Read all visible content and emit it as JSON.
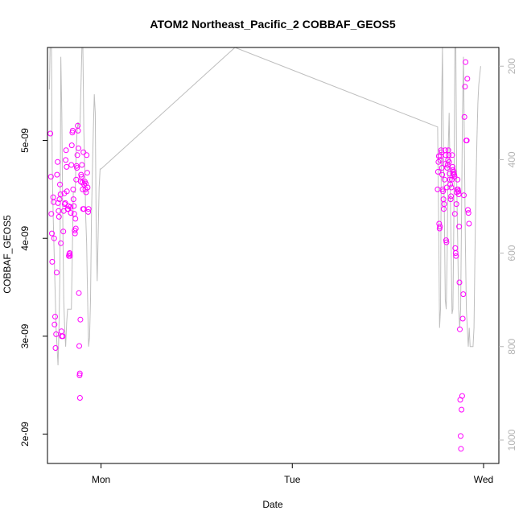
{
  "chart_data": {
    "type": "scatter",
    "title": "ATOM2 Northeast_Pacific_2 COBBAF_GEOS5",
    "xlabel": "Date",
    "ylabel": "COBBAF_GEOS5",
    "x_ticks": [
      "Mon",
      "Tue",
      "Wed"
    ],
    "y_ticks": [
      "2e-09",
      "3e-09",
      "4e-09",
      "5e-09"
    ],
    "y_tick_values": [
      2e-09,
      3e-09,
      4e-09,
      5e-09
    ],
    "y_right_ticks": [
      "200",
      "400",
      "600",
      "800",
      "1000"
    ],
    "y_right_tick_values": [
      200,
      400,
      600,
      800,
      1000
    ],
    "xlim": [
      -0.28,
      2.08
    ],
    "ylim": [
      1.7e-09,
      5.95e-09
    ],
    "y_right_lim": [
      1050,
      160
    ],
    "point_color": "#ff00ff",
    "line_color": "#bebebe",
    "series": [
      {
        "type": "line",
        "axis": "right",
        "values_note": "pressure",
        "points": [
          [
            -0.27,
            250
          ],
          [
            -0.265,
            120
          ],
          [
            -0.26,
            120
          ],
          [
            -0.255,
            420
          ],
          [
            -0.25,
            520
          ],
          [
            -0.245,
            600
          ],
          [
            -0.24,
            680
          ],
          [
            -0.235,
            760
          ],
          [
            -0.23,
            800
          ],
          [
            -0.225,
            840
          ],
          [
            -0.22,
            760
          ],
          [
            -0.215,
            640
          ],
          [
            -0.21,
            180
          ],
          [
            -0.205,
            300
          ],
          [
            -0.2,
            520
          ],
          [
            -0.195,
            700
          ],
          [
            -0.19,
            760
          ],
          [
            -0.185,
            800
          ],
          [
            -0.18,
            750
          ],
          [
            -0.175,
            720
          ],
          [
            -0.17,
            720
          ],
          [
            -0.165,
            720
          ],
          [
            -0.16,
            720
          ],
          [
            -0.155,
            720
          ],
          [
            -0.15,
            600
          ],
          [
            -0.145,
            470
          ],
          [
            -0.14,
            470
          ],
          [
            -0.135,
            470
          ],
          [
            -0.13,
            380
          ],
          [
            -0.125,
            340
          ],
          [
            -0.12,
            320
          ],
          [
            -0.115,
            330
          ],
          [
            -0.11,
            330
          ],
          [
            -0.1,
            160
          ],
          [
            -0.095,
            160
          ],
          [
            -0.09,
            340
          ],
          [
            -0.085,
            420
          ],
          [
            -0.08,
            520
          ],
          [
            -0.075,
            580
          ],
          [
            -0.07,
            700
          ],
          [
            -0.065,
            800
          ],
          [
            -0.06,
            780
          ],
          [
            -0.055,
            700
          ],
          [
            -0.05,
            520
          ],
          [
            -0.045,
            420
          ],
          [
            -0.04,
            330
          ],
          [
            -0.035,
            260
          ],
          [
            -0.03,
            300
          ],
          [
            -0.025,
            560
          ],
          [
            -0.02,
            660
          ],
          [
            -0.015,
            560
          ],
          [
            -0.01,
            460
          ],
          [
            -0.005,
            420
          ],
          [
            0.0,
            420
          ],
          [
            0.7,
            160
          ],
          [
            1.76,
            330
          ],
          [
            1.765,
            520
          ],
          [
            1.77,
            760
          ],
          [
            1.775,
            720
          ],
          [
            1.78,
            300
          ],
          [
            1.785,
            160
          ],
          [
            1.79,
            380
          ],
          [
            1.795,
            520
          ],
          [
            1.8,
            700
          ],
          [
            1.805,
            720
          ],
          [
            1.81,
            600
          ],
          [
            1.815,
            380
          ],
          [
            1.82,
            300
          ],
          [
            1.825,
            440
          ],
          [
            1.83,
            580
          ],
          [
            1.835,
            730
          ],
          [
            1.84,
            720
          ],
          [
            1.845,
            520
          ],
          [
            1.85,
            160
          ],
          [
            1.855,
            160
          ],
          [
            1.86,
            460
          ],
          [
            1.865,
            580
          ],
          [
            1.87,
            720
          ],
          [
            1.875,
            760
          ],
          [
            1.88,
            720
          ],
          [
            1.885,
            520
          ],
          [
            1.89,
            300
          ],
          [
            1.895,
            180
          ],
          [
            1.9,
            380
          ],
          [
            1.905,
            580
          ],
          [
            1.91,
            720
          ],
          [
            1.915,
            760
          ],
          [
            1.92,
            800
          ],
          [
            1.925,
            760
          ],
          [
            1.93,
            800
          ],
          [
            1.935,
            800
          ],
          [
            1.94,
            800
          ],
          [
            1.945,
            800
          ],
          [
            1.95,
            760
          ],
          [
            1.955,
            600
          ],
          [
            1.96,
            460
          ],
          [
            1.965,
            360
          ],
          [
            1.97,
            280
          ],
          [
            1.975,
            240
          ],
          [
            1.98,
            220
          ],
          [
            1.985,
            200
          ]
        ]
      },
      {
        "type": "scatter",
        "axis": "left",
        "points": [
          [
            -0.265,
            5.07e-09
          ],
          [
            -0.262,
            4.63e-09
          ],
          [
            -0.26,
            4.25e-09
          ],
          [
            -0.257,
            4.05e-09
          ],
          [
            -0.255,
            3.76e-09
          ],
          [
            -0.25,
            4.42e-09
          ],
          [
            -0.248,
            4.37e-09
          ],
          [
            -0.245,
            4e-09
          ],
          [
            -0.243,
            3.12e-09
          ],
          [
            -0.24,
            3.2e-09
          ],
          [
            -0.238,
            2.88e-09
          ],
          [
            -0.235,
            3.02e-09
          ],
          [
            -0.232,
            3.65e-09
          ],
          [
            -0.23,
            4.65e-09
          ],
          [
            -0.227,
            4.78e-09
          ],
          [
            -0.225,
            4.36e-09
          ],
          [
            -0.222,
            4.28e-09
          ],
          [
            -0.22,
            4.22e-09
          ],
          [
            -0.217,
            4.4e-09
          ],
          [
            -0.215,
            4.55e-09
          ],
          [
            -0.212,
            4.45e-09
          ],
          [
            -0.21,
            3.95e-09
          ],
          [
            -0.207,
            3.05e-09
          ],
          [
            -0.205,
            3e-09
          ],
          [
            -0.2,
            3e-09
          ],
          [
            -0.197,
            4.07e-09
          ],
          [
            -0.195,
            4.28e-09
          ],
          [
            -0.192,
            4.46e-09
          ],
          [
            -0.19,
            4.35e-09
          ],
          [
            -0.187,
            4.36e-09
          ],
          [
            -0.185,
            4.8e-09
          ],
          [
            -0.183,
            4.9e-09
          ],
          [
            -0.18,
            4.73e-09
          ],
          [
            -0.178,
            4.48e-09
          ],
          [
            -0.175,
            4.3e-09
          ],
          [
            -0.172,
            4.3e-09
          ],
          [
            -0.17,
            4.33e-09
          ],
          [
            -0.168,
            3.82e-09
          ],
          [
            -0.166,
            3.84e-09
          ],
          [
            -0.164,
            3.85e-09
          ],
          [
            -0.162,
            3.82e-09
          ],
          [
            -0.16,
            4.32e-09
          ],
          [
            -0.158,
            4.26e-09
          ],
          [
            -0.155,
            4.75e-09
          ],
          [
            -0.153,
            4.95e-09
          ],
          [
            -0.15,
            5.08e-09
          ],
          [
            -0.148,
            5.1e-09
          ],
          [
            -0.146,
            4.5e-09
          ],
          [
            -0.144,
            4.4e-09
          ],
          [
            -0.142,
            4.33e-09
          ],
          [
            -0.14,
            4.25e-09
          ],
          [
            -0.138,
            4.08e-09
          ],
          [
            -0.136,
            4.05e-09
          ],
          [
            -0.134,
            4.2e-09
          ],
          [
            -0.132,
            4.1e-09
          ],
          [
            -0.13,
            4.6e-09
          ],
          [
            -0.128,
            4.74e-09
          ],
          [
            -0.126,
            4.72e-09
          ],
          [
            -0.124,
            4.85e-09
          ],
          [
            -0.122,
            5.15e-09
          ],
          [
            -0.12,
            5.1e-09
          ],
          [
            -0.118,
            4.92e-09
          ],
          [
            -0.116,
            3.44e-09
          ],
          [
            -0.114,
            2.9e-09
          ],
          [
            -0.112,
            2.6e-09
          ],
          [
            -0.111,
            2.62e-09
          ],
          [
            -0.11,
            2.37e-09
          ],
          [
            -0.108,
            3.17e-09
          ],
          [
            -0.106,
            4.58e-09
          ],
          [
            -0.104,
            4.65e-09
          ],
          [
            -0.102,
            4.63e-09
          ],
          [
            -0.1,
            4.75e-09
          ],
          [
            -0.098,
            4.57e-09
          ],
          [
            -0.096,
            4.5e-09
          ],
          [
            -0.094,
            4.3e-09
          ],
          [
            -0.092,
            4.88e-09
          ],
          [
            -0.09,
            4.3e-09
          ],
          [
            -0.088,
            4.55e-09
          ],
          [
            -0.085,
            4.58e-09
          ],
          [
            -0.082,
            4.5e-09
          ],
          [
            -0.08,
            4.56e-09
          ],
          [
            -0.078,
            4.47e-09
          ],
          [
            -0.075,
            4.85e-09
          ],
          [
            -0.072,
            4.67e-09
          ],
          [
            -0.07,
            4.52e-09
          ],
          [
            -0.067,
            4.27e-09
          ],
          [
            -0.065,
            4.3e-09
          ],
          [
            1.76,
            4.5e-09
          ],
          [
            1.762,
            4.68e-09
          ],
          [
            1.764,
            4.78e-09
          ],
          [
            1.766,
            4.84e-09
          ],
          [
            1.768,
            4.15e-09
          ],
          [
            1.77,
            4.1e-09
          ],
          [
            1.772,
            4.12e-09
          ],
          [
            1.774,
            4.8e-09
          ],
          [
            1.776,
            4.84e-09
          ],
          [
            1.778,
            4.9e-09
          ],
          [
            1.78,
            4.88e-09
          ],
          [
            1.782,
            4.72e-09
          ],
          [
            1.784,
            4.65e-09
          ],
          [
            1.786,
            4.5e-09
          ],
          [
            1.788,
            4.48e-09
          ],
          [
            1.79,
            4.4e-09
          ],
          [
            1.792,
            4.3e-09
          ],
          [
            1.794,
            4.35e-09
          ],
          [
            1.796,
            4.6e-09
          ],
          [
            1.798,
            4.76e-09
          ],
          [
            1.8,
            4.9e-09
          ],
          [
            1.802,
            4.85e-09
          ],
          [
            1.804,
            3.98e-09
          ],
          [
            1.806,
            3.96e-09
          ],
          [
            1.808,
            4.52e-09
          ],
          [
            1.81,
            4.72e-09
          ],
          [
            1.812,
            4.75e-09
          ],
          [
            1.814,
            4.8e-09
          ],
          [
            1.816,
            4.9e-09
          ],
          [
            1.818,
            4.85e-09
          ],
          [
            1.82,
            4.78e-09
          ],
          [
            1.822,
            4.66e-09
          ],
          [
            1.824,
            4.6e-09
          ],
          [
            1.826,
            4.55e-09
          ],
          [
            1.828,
            4.4e-09
          ],
          [
            1.83,
            4.43e-09
          ],
          [
            1.832,
            4.52e-09
          ],
          [
            1.834,
            4.6e-09
          ],
          [
            1.836,
            4.85e-09
          ],
          [
            1.838,
            4.73e-09
          ],
          [
            1.84,
            4.7e-09
          ],
          [
            1.842,
            4.66e-09
          ],
          [
            1.844,
            4.68e-09
          ],
          [
            1.846,
            4.65e-09
          ],
          [
            1.848,
            4.63e-09
          ],
          [
            1.85,
            4.25e-09
          ],
          [
            1.852,
            3.9e-09
          ],
          [
            1.854,
            3.85e-09
          ],
          [
            1.856,
            3.82e-09
          ],
          [
            1.858,
            4.35e-09
          ],
          [
            1.86,
            4.47e-09
          ],
          [
            1.862,
            4.5e-09
          ],
          [
            1.864,
            4.6e-09
          ],
          [
            1.866,
            4.5e-09
          ],
          [
            1.868,
            4.48e-09
          ],
          [
            1.87,
            4.45e-09
          ],
          [
            1.872,
            4.12e-09
          ],
          [
            1.874,
            3.55e-09
          ],
          [
            1.876,
            3.07e-09
          ],
          [
            1.878,
            2.35e-09
          ],
          [
            1.88,
            1.98e-09
          ],
          [
            1.882,
            1.85e-09
          ],
          [
            1.885,
            2.25e-09
          ],
          [
            1.888,
            2.39e-09
          ],
          [
            1.891,
            3.18e-09
          ],
          [
            1.894,
            3.43e-09
          ],
          [
            1.897,
            4.44e-09
          ],
          [
            1.9,
            5.24e-09
          ],
          [
            1.903,
            5.55e-09
          ],
          [
            1.906,
            5.8e-09
          ],
          [
            1.909,
            5e-09
          ],
          [
            1.912,
            5e-09
          ],
          [
            1.915,
            5.63e-09
          ],
          [
            1.918,
            4.29e-09
          ],
          [
            1.921,
            4.26e-09
          ],
          [
            1.924,
            4.15e-09
          ]
        ]
      }
    ]
  }
}
